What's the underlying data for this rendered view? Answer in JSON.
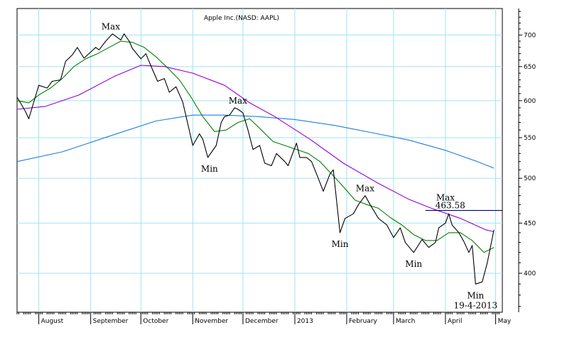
{
  "chart_data": {
    "type": "line",
    "title": "Apple Inc.(NASD: AAPL)",
    "y_scale": "log",
    "ylim": [
      365,
      745
    ],
    "grid": true,
    "y_ticks": [
      400,
      450,
      500,
      550,
      600,
      650,
      700
    ],
    "x_ticks": [
      {
        "label": "August",
        "date": "2012-08-01"
      },
      {
        "label": "September",
        "date": "2012-09-01"
      },
      {
        "label": "October",
        "date": "2012-10-01"
      },
      {
        "label": "November",
        "date": "2012-11-01"
      },
      {
        "label": "December",
        "date": "2012-12-01"
      },
      {
        "label": "2013",
        "date": "2013-01-01"
      },
      {
        "label": "February",
        "date": "2013-02-01"
      },
      {
        "label": "March",
        "date": "2013-03-01"
      },
      {
        "label": "April",
        "date": "2013-04-01"
      },
      {
        "label": "May",
        "date": "2013-05-01"
      }
    ],
    "xlim": [
      "2012-07-19",
      "2013-05-05"
    ],
    "series": [
      {
        "color": "#000000",
        "x": [
          "2012-07-19",
          "2012-07-24",
          "2012-07-26",
          "2012-08-01",
          "2012-08-06",
          "2012-08-09",
          "2012-08-14",
          "2012-08-17",
          "2012-08-21",
          "2012-08-24",
          "2012-08-28",
          "2012-09-04",
          "2012-09-06",
          "2012-09-10",
          "2012-09-14",
          "2012-09-19",
          "2012-09-21",
          "2012-09-24",
          "2012-09-26",
          "2012-10-01",
          "2012-10-04",
          "2012-10-08",
          "2012-10-11",
          "2012-10-15",
          "2012-10-18",
          "2012-10-22",
          "2012-10-26",
          "2012-11-01",
          "2012-11-05",
          "2012-11-07",
          "2012-11-10",
          "2012-11-15",
          "2012-11-18",
          "2012-11-20",
          "2012-11-23",
          "2012-11-26",
          "2012-11-28",
          "2012-12-01",
          "2012-12-04",
          "2012-12-07",
          "2012-12-11",
          "2012-12-14",
          "2012-12-18",
          "2012-12-21",
          "2012-12-26",
          "2012-12-28",
          "2013-01-02",
          "2013-01-04",
          "2013-01-08",
          "2013-01-11",
          "2013-01-15",
          "2013-01-18",
          "2013-01-22",
          "2013-01-24",
          "2013-01-28",
          "2013-01-31",
          "2013-02-05",
          "2013-02-08",
          "2013-02-12",
          "2013-02-15",
          "2013-02-20",
          "2013-02-25",
          "2013-03-01",
          "2013-03-05",
          "2013-03-08",
          "2013-03-13",
          "2013-03-18",
          "2013-03-22",
          "2013-03-26",
          "2013-03-28",
          "2013-04-01",
          "2013-04-03",
          "2013-04-05",
          "2013-04-09",
          "2013-04-12",
          "2013-04-15",
          "2013-04-17",
          "2013-04-19",
          "2013-04-23",
          "2013-04-26",
          "2013-04-30"
        ],
        "y": [
          605,
          585,
          575,
          622,
          618,
          628,
          630,
          658,
          668,
          680,
          663,
          680,
          676,
          690,
          702,
          692,
          702,
          690,
          678,
          662,
          670,
          645,
          628,
          632,
          612,
          620,
          598,
          540,
          555,
          548,
          525,
          540,
          570,
          578,
          580,
          590,
          588,
          583,
          560,
          535,
          540,
          518,
          515,
          530,
          520,
          515,
          543,
          525,
          525,
          520,
          500,
          485,
          505,
          510,
          440,
          455,
          460,
          470,
          480,
          470,
          455,
          448,
          435,
          445,
          430,
          420,
          433,
          425,
          430,
          445,
          450,
          460,
          448,
          440,
          431,
          420,
          427,
          390,
          392,
          410,
          443
        ]
      },
      {
        "color": "#008000",
        "x": [
          "2012-07-19",
          "2012-07-26",
          "2012-08-01",
          "2012-08-08",
          "2012-08-15",
          "2012-08-22",
          "2012-08-29",
          "2012-09-05",
          "2012-09-12",
          "2012-09-19",
          "2012-09-26",
          "2012-10-03",
          "2012-10-10",
          "2012-10-17",
          "2012-10-24",
          "2012-10-31",
          "2012-11-07",
          "2012-11-14",
          "2012-11-21",
          "2012-11-28",
          "2012-12-05",
          "2012-12-12",
          "2012-12-19",
          "2012-12-26",
          "2013-01-02",
          "2013-01-09",
          "2013-01-16",
          "2013-01-23",
          "2013-01-30",
          "2013-02-06",
          "2013-02-13",
          "2013-02-20",
          "2013-02-27",
          "2013-03-06",
          "2013-03-13",
          "2013-03-20",
          "2013-03-27",
          "2013-04-03",
          "2013-04-10",
          "2013-04-17",
          "2013-04-24",
          "2013-04-30"
        ],
        "y": [
          600,
          597,
          608,
          618,
          632,
          650,
          662,
          670,
          680,
          690,
          688,
          680,
          665,
          648,
          630,
          605,
          578,
          558,
          560,
          570,
          575,
          560,
          545,
          540,
          535,
          530,
          520,
          505,
          490,
          475,
          470,
          466,
          456,
          448,
          438,
          432,
          432,
          440,
          440,
          432,
          420,
          425
        ]
      },
      {
        "color": "#9400D3",
        "x": [
          "2012-07-19",
          "2012-08-05",
          "2012-08-25",
          "2012-09-15",
          "2012-10-01",
          "2012-10-15",
          "2012-11-01",
          "2012-11-20",
          "2012-12-05",
          "2012-12-20",
          "2013-01-10",
          "2013-01-30",
          "2013-02-20",
          "2013-03-10",
          "2013-03-25",
          "2013-04-10",
          "2013-04-25",
          "2013-04-30"
        ],
        "y": [
          588,
          592,
          608,
          635,
          652,
          650,
          640,
          622,
          597,
          578,
          548,
          518,
          494,
          476,
          465,
          455,
          443,
          441
        ]
      },
      {
        "color": "#1E7FDB",
        "x": [
          "2012-07-19",
          "2012-08-15",
          "2012-09-15",
          "2012-10-10",
          "2012-11-01",
          "2012-11-20",
          "2012-12-10",
          "2013-01-01",
          "2013-01-25",
          "2013-02-15",
          "2013-03-10",
          "2013-04-01",
          "2013-04-20",
          "2013-04-30"
        ],
        "y": [
          520,
          532,
          554,
          572,
          580,
          580,
          578,
          574,
          566,
          557,
          547,
          534,
          520,
          512
        ]
      }
    ],
    "reference_line": {
      "value": 463.58,
      "label": "463.58",
      "from": "2013-03-20",
      "to": "2013-05-05",
      "color": "#000080"
    },
    "annotations": [
      {
        "text": "Max",
        "date": "2012-09-13",
        "value": 702
      },
      {
        "text": "Min",
        "date": "2012-11-11",
        "value": 525
      },
      {
        "text": "Max",
        "date": "2012-11-28",
        "value": 590
      },
      {
        "text": "Min",
        "date": "2013-01-28",
        "value": 440
      },
      {
        "text": "Max",
        "date": "2013-02-12",
        "value": 480
      },
      {
        "text": "Min",
        "date": "2013-03-13",
        "value": 420
      },
      {
        "text": "Max",
        "date": "2013-04-01",
        "value": 463.58
      },
      {
        "text": "Min",
        "date": "2013-04-19",
        "value": 390
      },
      {
        "text": "19-4-2013",
        "date": "2013-04-19",
        "value": 390
      }
    ]
  }
}
